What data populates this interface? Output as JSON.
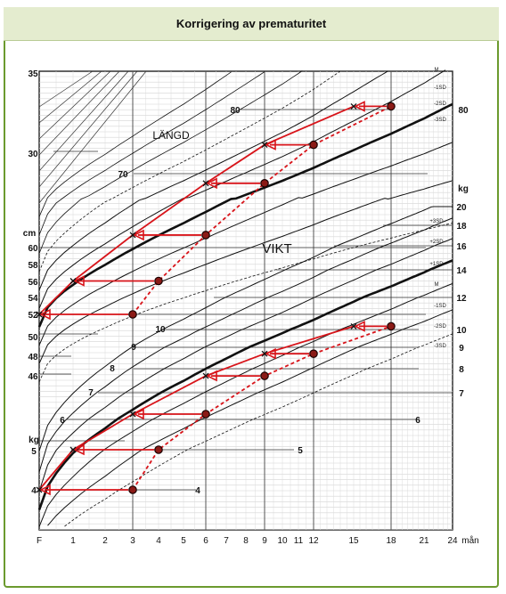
{
  "title": "Korrigering av prematuritet",
  "chart_data": {
    "type": "line",
    "title": "Korrigering av prematuritet",
    "xlabel": "mån",
    "x_ticks": [
      "F",
      "1",
      "2",
      "3",
      "4",
      "5",
      "6",
      "7",
      "8",
      "9",
      "10",
      "11",
      "12",
      "15",
      "18",
      "21",
      "24"
    ],
    "x_tick_values": [
      0,
      1,
      2,
      3,
      4,
      5,
      6,
      7,
      8,
      9,
      10,
      11,
      12,
      15,
      18,
      21,
      24
    ],
    "length_axis": {
      "label": "cm",
      "ticks": [
        "35",
        "30",
        "60",
        "58",
        "56",
        "54",
        "52",
        "50",
        "48",
        "46"
      ],
      "tick_values": [
        35,
        30,
        60,
        58,
        56,
        54,
        52,
        50,
        48,
        46
      ],
      "inside_ticks": [
        "70",
        "80"
      ],
      "inside_tick_values": [
        70,
        80
      ]
    },
    "weight_axis": {
      "label": "kg",
      "ticks": [
        "4",
        "5",
        "6",
        "7",
        "8",
        "9",
        "10",
        "12",
        "14",
        "16",
        "18",
        "20"
      ],
      "tick_values": [
        4,
        5,
        6,
        7,
        8,
        9,
        10,
        12,
        14,
        16,
        18,
        20
      ],
      "inside_ticks": [
        "4",
        "5",
        "6",
        "7",
        "8",
        "9",
        "10"
      ],
      "inside_tick_values": [
        4,
        5,
        6,
        7,
        8,
        9,
        10
      ],
      "left_label": "kg",
      "left_ticks": [
        "4",
        "5"
      ],
      "left_tick_values": [
        4,
        5
      ]
    },
    "curve_labels": [
      "M",
      "-1SD",
      "-2SD",
      "-3SD",
      "+1SD",
      "+2SD",
      "+3SD"
    ],
    "region_labels": [
      "LÄNGD",
      "VIKT"
    ],
    "series": [
      {
        "marker": "cross",
        "chart": "length",
        "x": [
          0,
          1,
          3,
          6,
          9,
          15
        ],
        "y": [
          52,
          56,
          61.5,
          68.5,
          74.5,
          80.5
        ]
      },
      {
        "marker": "circle",
        "chart": "length",
        "x": [
          3,
          4,
          6,
          9,
          12,
          18
        ],
        "y": [
          52,
          56,
          61.5,
          68.5,
          74.5,
          80.5
        ]
      },
      {
        "marker": "cross",
        "chart": "weight",
        "x": [
          0,
          1,
          3,
          6,
          9,
          15
        ],
        "y": [
          4,
          5,
          6.2,
          7.7,
          8.7,
          10.2
        ]
      },
      {
        "marker": "circle",
        "chart": "weight",
        "x": [
          3,
          4,
          6,
          9,
          12,
          18
        ],
        "y": [
          4,
          5,
          6.2,
          7.7,
          8.7,
          10.2
        ]
      }
    ],
    "colors": {
      "correction": "#d8141a",
      "circle_fill": "#8b1a16",
      "frame": "#6b9a2e",
      "title_bg": "#e4eccf"
    }
  }
}
